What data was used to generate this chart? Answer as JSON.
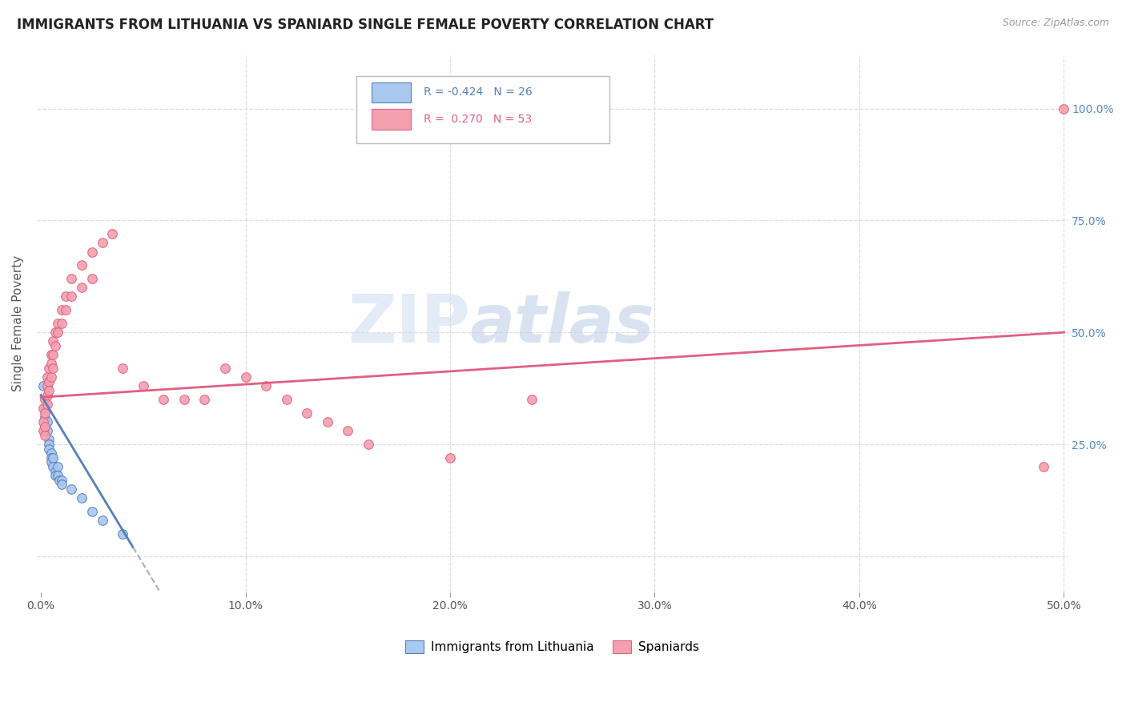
{
  "title": "IMMIGRANTS FROM LITHUANIA VS SPANIARD SINGLE FEMALE POVERTY CORRELATION CHART",
  "source": "Source: ZipAtlas.com",
  "ylabel": "Single Female Poverty",
  "xlim": [
    -0.002,
    0.502
  ],
  "ylim": [
    -0.08,
    1.12
  ],
  "xticks": [
    0.0,
    0.1,
    0.2,
    0.3,
    0.4,
    0.5
  ],
  "xtick_labels": [
    "0.0%",
    "10.0%",
    "20.0%",
    "30.0%",
    "40.0%",
    "50.0%"
  ],
  "yticks": [
    0.0,
    0.25,
    0.5,
    0.75,
    1.0
  ],
  "ytick_labels": [
    "",
    "25.0%",
    "50.0%",
    "75.0%",
    "100.0%"
  ],
  "watermark_zip": "ZIP",
  "watermark_atlas": "atlas",
  "color_lithuania": "#a8c8f0",
  "color_spaniard": "#f4a0b0",
  "color_line_lithuania": "#5580b8",
  "color_line_spaniard": "#e06080",
  "color_line_lithuania_dash": "#aaaacc",
  "lithuania_points": [
    [
      0.001,
      0.38
    ],
    [
      0.002,
      0.33
    ],
    [
      0.002,
      0.31
    ],
    [
      0.002,
      0.29
    ],
    [
      0.003,
      0.3
    ],
    [
      0.003,
      0.28
    ],
    [
      0.004,
      0.26
    ],
    [
      0.004,
      0.25
    ],
    [
      0.004,
      0.24
    ],
    [
      0.005,
      0.23
    ],
    [
      0.005,
      0.22
    ],
    [
      0.005,
      0.21
    ],
    [
      0.006,
      0.22
    ],
    [
      0.006,
      0.2
    ],
    [
      0.007,
      0.19
    ],
    [
      0.007,
      0.18
    ],
    [
      0.008,
      0.2
    ],
    [
      0.008,
      0.18
    ],
    [
      0.009,
      0.17
    ],
    [
      0.01,
      0.17
    ],
    [
      0.01,
      0.16
    ],
    [
      0.015,
      0.15
    ],
    [
      0.02,
      0.13
    ],
    [
      0.025,
      0.1
    ],
    [
      0.03,
      0.08
    ],
    [
      0.04,
      0.05
    ]
  ],
  "spaniard_points": [
    [
      0.001,
      0.33
    ],
    [
      0.001,
      0.3
    ],
    [
      0.001,
      0.28
    ],
    [
      0.002,
      0.35
    ],
    [
      0.002,
      0.32
    ],
    [
      0.002,
      0.29
    ],
    [
      0.002,
      0.27
    ],
    [
      0.003,
      0.4
    ],
    [
      0.003,
      0.38
    ],
    [
      0.003,
      0.36
    ],
    [
      0.003,
      0.34
    ],
    [
      0.004,
      0.42
    ],
    [
      0.004,
      0.39
    ],
    [
      0.004,
      0.37
    ],
    [
      0.005,
      0.45
    ],
    [
      0.005,
      0.43
    ],
    [
      0.005,
      0.4
    ],
    [
      0.006,
      0.48
    ],
    [
      0.006,
      0.45
    ],
    [
      0.006,
      0.42
    ],
    [
      0.007,
      0.5
    ],
    [
      0.007,
      0.47
    ],
    [
      0.008,
      0.52
    ],
    [
      0.008,
      0.5
    ],
    [
      0.01,
      0.55
    ],
    [
      0.01,
      0.52
    ],
    [
      0.012,
      0.58
    ],
    [
      0.012,
      0.55
    ],
    [
      0.015,
      0.62
    ],
    [
      0.015,
      0.58
    ],
    [
      0.02,
      0.65
    ],
    [
      0.02,
      0.6
    ],
    [
      0.025,
      0.68
    ],
    [
      0.025,
      0.62
    ],
    [
      0.03,
      0.7
    ],
    [
      0.035,
      0.72
    ],
    [
      0.04,
      0.42
    ],
    [
      0.05,
      0.38
    ],
    [
      0.06,
      0.35
    ],
    [
      0.07,
      0.35
    ],
    [
      0.08,
      0.35
    ],
    [
      0.09,
      0.42
    ],
    [
      0.1,
      0.4
    ],
    [
      0.11,
      0.38
    ],
    [
      0.12,
      0.35
    ],
    [
      0.13,
      0.32
    ],
    [
      0.14,
      0.3
    ],
    [
      0.15,
      0.28
    ],
    [
      0.16,
      0.25
    ],
    [
      0.2,
      0.22
    ],
    [
      0.24,
      0.35
    ],
    [
      0.49,
      0.2
    ],
    [
      0.5,
      1.0
    ]
  ],
  "background_color": "#ffffff",
  "grid_color": "#dddddd",
  "title_fontsize": 12,
  "axis_fontsize": 11,
  "tick_fontsize": 10,
  "legend_r1_val": "R = -0.424",
  "legend_r1_n": "N = 26",
  "legend_r2_val": "R =  0.270",
  "legend_r2_n": "N = 53",
  "line_lith_x0": 0.0,
  "line_lith_x1": 0.045,
  "line_lith_y0": 0.36,
  "line_lith_y1": 0.02,
  "line_span_x0": 0.0,
  "line_span_x1": 0.5,
  "line_span_y0": 0.355,
  "line_span_y1": 0.5
}
